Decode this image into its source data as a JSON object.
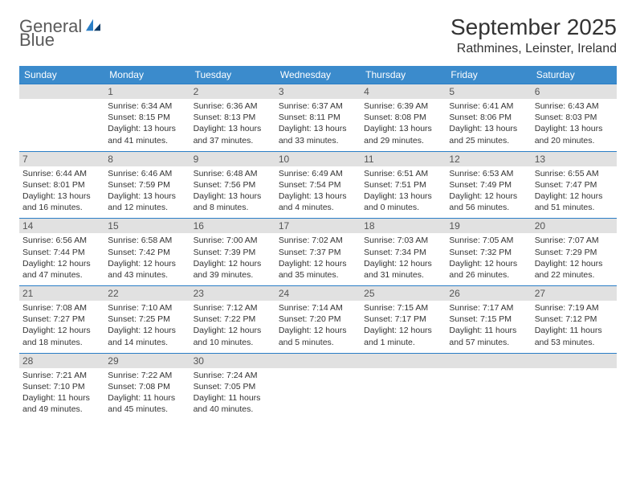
{
  "logo": {
    "word1": "General",
    "word2": "Blue"
  },
  "title": "September 2025",
  "location": "Rathmines, Leinster, Ireland",
  "colors": {
    "header_bg": "#3b8bcc",
    "header_text": "#ffffff",
    "daynum_bg": "#e1e1e1",
    "divider": "#2a7ec6",
    "text": "#333333"
  },
  "day_names": [
    "Sunday",
    "Monday",
    "Tuesday",
    "Wednesday",
    "Thursday",
    "Friday",
    "Saturday"
  ],
  "weeks": [
    [
      null,
      {
        "n": "1",
        "sunrise": "6:34 AM",
        "sunset": "8:15 PM",
        "daylight": "13 hours and 41 minutes."
      },
      {
        "n": "2",
        "sunrise": "6:36 AM",
        "sunset": "8:13 PM",
        "daylight": "13 hours and 37 minutes."
      },
      {
        "n": "3",
        "sunrise": "6:37 AM",
        "sunset": "8:11 PM",
        "daylight": "13 hours and 33 minutes."
      },
      {
        "n": "4",
        "sunrise": "6:39 AM",
        "sunset": "8:08 PM",
        "daylight": "13 hours and 29 minutes."
      },
      {
        "n": "5",
        "sunrise": "6:41 AM",
        "sunset": "8:06 PM",
        "daylight": "13 hours and 25 minutes."
      },
      {
        "n": "6",
        "sunrise": "6:43 AM",
        "sunset": "8:03 PM",
        "daylight": "13 hours and 20 minutes."
      }
    ],
    [
      {
        "n": "7",
        "sunrise": "6:44 AM",
        "sunset": "8:01 PM",
        "daylight": "13 hours and 16 minutes."
      },
      {
        "n": "8",
        "sunrise": "6:46 AM",
        "sunset": "7:59 PM",
        "daylight": "13 hours and 12 minutes."
      },
      {
        "n": "9",
        "sunrise": "6:48 AM",
        "sunset": "7:56 PM",
        "daylight": "13 hours and 8 minutes."
      },
      {
        "n": "10",
        "sunrise": "6:49 AM",
        "sunset": "7:54 PM",
        "daylight": "13 hours and 4 minutes."
      },
      {
        "n": "11",
        "sunrise": "6:51 AM",
        "sunset": "7:51 PM",
        "daylight": "13 hours and 0 minutes."
      },
      {
        "n": "12",
        "sunrise": "6:53 AM",
        "sunset": "7:49 PM",
        "daylight": "12 hours and 56 minutes."
      },
      {
        "n": "13",
        "sunrise": "6:55 AM",
        "sunset": "7:47 PM",
        "daylight": "12 hours and 51 minutes."
      }
    ],
    [
      {
        "n": "14",
        "sunrise": "6:56 AM",
        "sunset": "7:44 PM",
        "daylight": "12 hours and 47 minutes."
      },
      {
        "n": "15",
        "sunrise": "6:58 AM",
        "sunset": "7:42 PM",
        "daylight": "12 hours and 43 minutes."
      },
      {
        "n": "16",
        "sunrise": "7:00 AM",
        "sunset": "7:39 PM",
        "daylight": "12 hours and 39 minutes."
      },
      {
        "n": "17",
        "sunrise": "7:02 AM",
        "sunset": "7:37 PM",
        "daylight": "12 hours and 35 minutes."
      },
      {
        "n": "18",
        "sunrise": "7:03 AM",
        "sunset": "7:34 PM",
        "daylight": "12 hours and 31 minutes."
      },
      {
        "n": "19",
        "sunrise": "7:05 AM",
        "sunset": "7:32 PM",
        "daylight": "12 hours and 26 minutes."
      },
      {
        "n": "20",
        "sunrise": "7:07 AM",
        "sunset": "7:29 PM",
        "daylight": "12 hours and 22 minutes."
      }
    ],
    [
      {
        "n": "21",
        "sunrise": "7:08 AM",
        "sunset": "7:27 PM",
        "daylight": "12 hours and 18 minutes."
      },
      {
        "n": "22",
        "sunrise": "7:10 AM",
        "sunset": "7:25 PM",
        "daylight": "12 hours and 14 minutes."
      },
      {
        "n": "23",
        "sunrise": "7:12 AM",
        "sunset": "7:22 PM",
        "daylight": "12 hours and 10 minutes."
      },
      {
        "n": "24",
        "sunrise": "7:14 AM",
        "sunset": "7:20 PM",
        "daylight": "12 hours and 5 minutes."
      },
      {
        "n": "25",
        "sunrise": "7:15 AM",
        "sunset": "7:17 PM",
        "daylight": "12 hours and 1 minute."
      },
      {
        "n": "26",
        "sunrise": "7:17 AM",
        "sunset": "7:15 PM",
        "daylight": "11 hours and 57 minutes."
      },
      {
        "n": "27",
        "sunrise": "7:19 AM",
        "sunset": "7:12 PM",
        "daylight": "11 hours and 53 minutes."
      }
    ],
    [
      {
        "n": "28",
        "sunrise": "7:21 AM",
        "sunset": "7:10 PM",
        "daylight": "11 hours and 49 minutes."
      },
      {
        "n": "29",
        "sunrise": "7:22 AM",
        "sunset": "7:08 PM",
        "daylight": "11 hours and 45 minutes."
      },
      {
        "n": "30",
        "sunrise": "7:24 AM",
        "sunset": "7:05 PM",
        "daylight": "11 hours and 40 minutes."
      },
      null,
      null,
      null,
      null
    ]
  ],
  "labels": {
    "sunrise": "Sunrise: ",
    "sunset": "Sunset: ",
    "daylight": "Daylight: "
  }
}
